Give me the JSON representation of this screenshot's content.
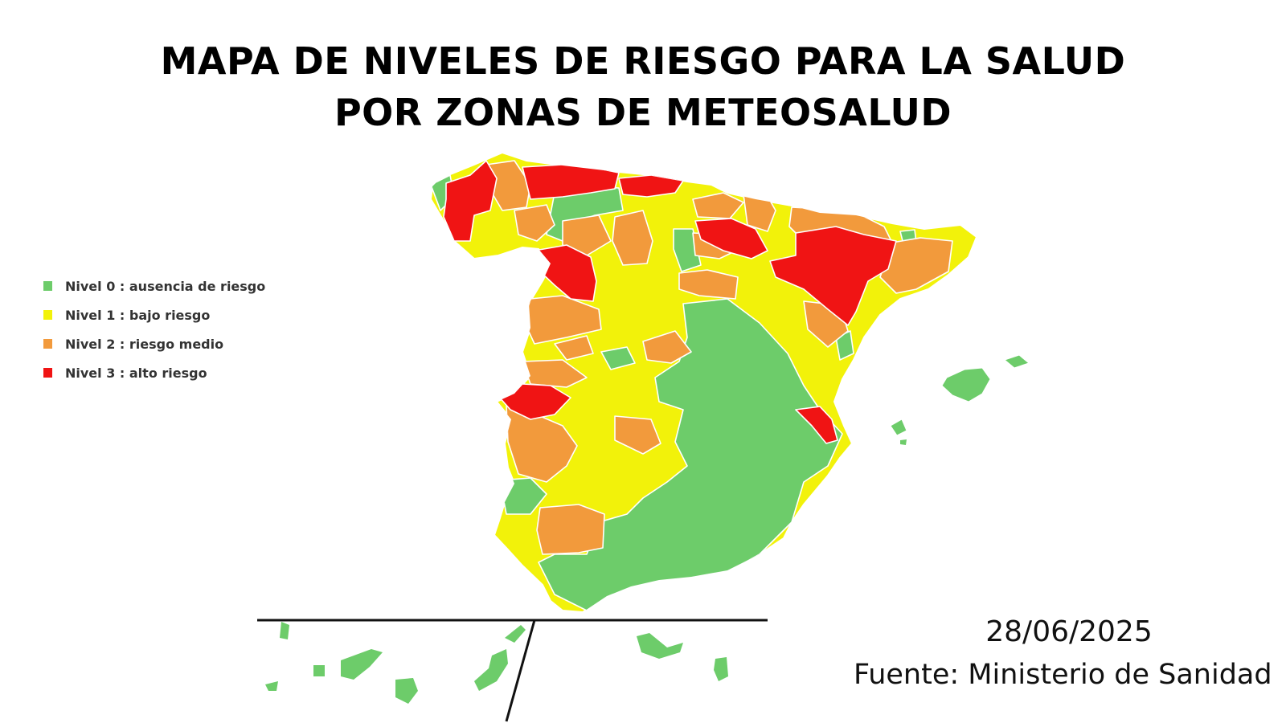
{
  "title": {
    "line1": "MAPA DE NIVELES DE RIESGO PARA LA SALUD",
    "line2": "POR ZONAS DE METEOSALUD"
  },
  "legend": [
    {
      "label": "Nivel 0 : ausencia de riesgo",
      "color": "#6dcc6a"
    },
    {
      "label": "Nivel 1 : bajo riesgo",
      "color": "#f2f20a"
    },
    {
      "label": "Nivel 2 : riesgo medio",
      "color": "#f29a3c"
    },
    {
      "label": "Nivel 3 : alto riesgo",
      "color": "#f01414"
    }
  ],
  "colors": {
    "nivel0": "#6dcc6a",
    "nivel1": "#f2f20a",
    "nivel2": "#f29a3c",
    "nivel3": "#f01414",
    "borders": "#ffffff",
    "divider": "#111111"
  },
  "footer": {
    "date": "28/06/2025",
    "source": "Fuente: Ministerio de Sanidad"
  }
}
